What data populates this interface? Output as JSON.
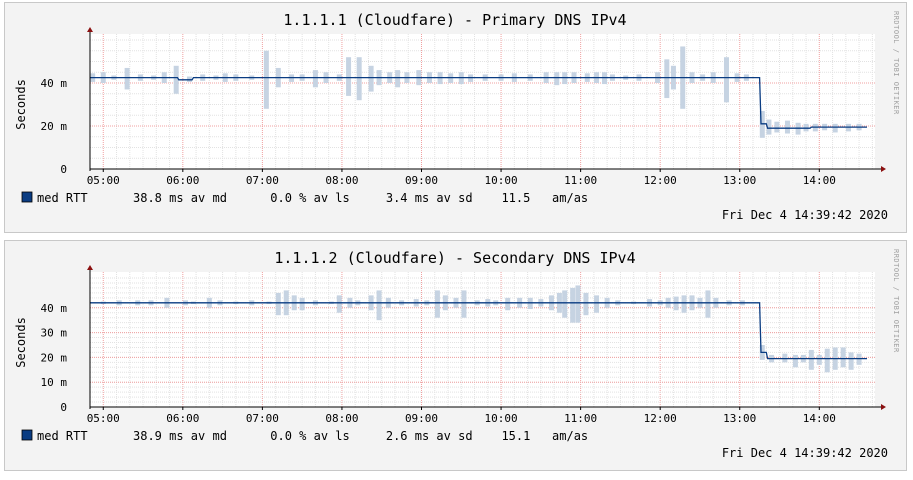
{
  "side_label": "RRDTOOL / TOBI OETIKER",
  "chart_data": [
    {
      "type": "line",
      "title": "1.1.1.1 (Cloudfare) - Primary DNS IPv4",
      "ylabel": "Seconds",
      "x_ticks": [
        "05:00",
        "06:00",
        "07:00",
        "08:00",
        "09:00",
        "10:00",
        "11:00",
        "12:00",
        "13:00",
        "14:00"
      ],
      "x_range": [
        "04:50",
        "14:42"
      ],
      "y_ticks": [
        {
          "value": 0,
          "label": "0"
        },
        {
          "value": 20,
          "label": "20 m"
        },
        {
          "value": 40,
          "label": "40 m"
        }
      ],
      "ylim": [
        0,
        60
      ],
      "grid": true,
      "series": [
        {
          "name": "med RTT",
          "color": "#0a3c82",
          "points": [
            [
              "04:50",
              42.5
            ],
            [
              "05:56",
              42.5
            ],
            [
              "05:57",
              41.5
            ],
            [
              "06:07",
              41.5
            ],
            [
              "06:08",
              42.5
            ],
            [
              "13:15",
              42.5
            ],
            [
              "13:16",
              21
            ],
            [
              "13:20",
              21
            ],
            [
              "13:21",
              19
            ],
            [
              "13:53",
              19
            ],
            [
              "13:54",
              19.5
            ],
            [
              "14:36",
              19.5
            ]
          ]
        }
      ],
      "smoke_color": "#c6d3e2",
      "smoke": [
        [
          "04:52",
          40.5,
          44.5
        ],
        [
          "05:00",
          40,
          45
        ],
        [
          "05:08",
          41.5,
          43.5
        ],
        [
          "05:18",
          37,
          47
        ],
        [
          "05:28",
          41,
          44
        ],
        [
          "05:38",
          41.5,
          43.5
        ],
        [
          "05:46",
          40,
          45
        ],
        [
          "05:55",
          35,
          48
        ],
        [
          "06:05",
          40.5,
          43
        ],
        [
          "06:15",
          41,
          44
        ],
        [
          "06:25",
          41.5,
          43.5
        ],
        [
          "06:32",
          40.5,
          44.5
        ],
        [
          "06:40",
          41,
          44
        ],
        [
          "06:52",
          41.5,
          43.5
        ],
        [
          "07:03",
          28,
          55
        ],
        [
          "07:12",
          38,
          47
        ],
        [
          "07:22",
          40.5,
          44
        ],
        [
          "07:30",
          41,
          44
        ],
        [
          "07:40",
          38,
          46
        ],
        [
          "07:48",
          40,
          45
        ],
        [
          "07:58",
          41,
          44
        ],
        [
          "08:05",
          34,
          52
        ],
        [
          "08:13",
          32,
          52
        ],
        [
          "08:22",
          36,
          48
        ],
        [
          "08:28",
          39,
          46
        ],
        [
          "08:36",
          40,
          45
        ],
        [
          "08:42",
          38,
          46
        ],
        [
          "08:49",
          40,
          45
        ],
        [
          "08:58",
          39,
          46
        ],
        [
          "09:06",
          40,
          45
        ],
        [
          "09:14",
          39.5,
          45
        ],
        [
          "09:22",
          40,
          44.5
        ],
        [
          "09:30",
          39.5,
          45
        ],
        [
          "09:37",
          40.5,
          44
        ],
        [
          "09:48",
          41,
          44
        ],
        [
          "10:00",
          41,
          44
        ],
        [
          "10:10",
          40.5,
          44.5
        ],
        [
          "10:22",
          41,
          44
        ],
        [
          "10:34",
          40,
          45
        ],
        [
          "10:42",
          39,
          45
        ],
        [
          "10:48",
          39.5,
          45
        ],
        [
          "10:55",
          40,
          45
        ],
        [
          "11:05",
          40.5,
          44.5
        ],
        [
          "11:12",
          40,
          45
        ],
        [
          "11:18",
          39.5,
          45
        ],
        [
          "11:24",
          41,
          44
        ],
        [
          "11:34",
          41.5,
          43.5
        ],
        [
          "11:44",
          41,
          44
        ],
        [
          "11:58",
          40,
          45
        ],
        [
          "12:05",
          33,
          51
        ],
        [
          "12:10",
          37,
          48
        ],
        [
          "12:17",
          28,
          57
        ],
        [
          "12:24",
          40,
          45
        ],
        [
          "12:32",
          41,
          44
        ],
        [
          "12:40",
          40,
          45
        ],
        [
          "12:50",
          31,
          52
        ],
        [
          "12:58",
          40.5,
          44.5
        ],
        [
          "13:05",
          41,
          44
        ],
        [
          "13:17",
          14.5,
          27
        ],
        [
          "13:22",
          16,
          23
        ],
        [
          "13:28",
          17,
          22
        ],
        [
          "13:36",
          16.5,
          22.5
        ],
        [
          "13:44",
          16,
          21.5
        ],
        [
          "13:50",
          17.5,
          21
        ],
        [
          "13:57",
          17.5,
          21
        ],
        [
          "14:04",
          18,
          21
        ],
        [
          "14:12",
          17,
          21
        ],
        [
          "14:22",
          17.5,
          21
        ],
        [
          "14:30",
          18,
          21
        ]
      ],
      "legend": {
        "label": "med RTT",
        "color": "#0a3c82",
        "text": "38.8 ms av md      0.0 % av ls     3.4 ms av sd    11.5   am/as"
      },
      "timestamp": "Fri Dec  4 14:39:42 2020"
    },
    {
      "type": "line",
      "title": "1.1.1.2 (Cloudfare) - Secondary DNS IPv4",
      "ylabel": "Seconds",
      "x_ticks": [
        "05:00",
        "06:00",
        "07:00",
        "08:00",
        "09:00",
        "10:00",
        "11:00",
        "12:00",
        "13:00",
        "14:00"
      ],
      "x_range": [
        "04:50",
        "14:42"
      ],
      "y_ticks": [
        {
          "value": 0,
          "label": "0"
        },
        {
          "value": 10,
          "label": "10 m"
        },
        {
          "value": 20,
          "label": "20 m"
        },
        {
          "value": 30,
          "label": "30 m"
        },
        {
          "value": 40,
          "label": "40 m"
        }
      ],
      "ylim": [
        0,
        52
      ],
      "grid": true,
      "series": [
        {
          "name": "med RTT",
          "color": "#0a3c82",
          "points": [
            [
              "04:50",
              42
            ],
            [
              "13:15",
              42
            ],
            [
              "13:16",
              22
            ],
            [
              "13:20",
              22
            ],
            [
              "13:21",
              19.5
            ],
            [
              "14:36",
              19.5
            ]
          ]
        }
      ],
      "smoke_color": "#c6d3e2",
      "smoke": [
        [
          "05:00",
          41.5,
          42.5
        ],
        [
          "05:12",
          41,
          43
        ],
        [
          "05:26",
          41,
          43
        ],
        [
          "05:36",
          41,
          43
        ],
        [
          "05:48",
          40,
          44
        ],
        [
          "06:02",
          41,
          43
        ],
        [
          "06:08",
          41.5,
          42.5
        ],
        [
          "06:20",
          40,
          44
        ],
        [
          "06:28",
          41,
          43
        ],
        [
          "06:40",
          41.5,
          42.5
        ],
        [
          "06:52",
          41,
          43
        ],
        [
          "07:05",
          41.5,
          42.5
        ],
        [
          "07:12",
          37,
          46
        ],
        [
          "07:18",
          37,
          47
        ],
        [
          "07:24",
          39,
          45
        ],
        [
          "07:30",
          39,
          44
        ],
        [
          "07:40",
          41,
          43
        ],
        [
          "07:52",
          41.5,
          42.5
        ],
        [
          "07:58",
          38,
          45
        ],
        [
          "08:06",
          40,
          44
        ],
        [
          "08:12",
          41,
          43
        ],
        [
          "08:22",
          39,
          45
        ],
        [
          "08:28",
          35,
          47
        ],
        [
          "08:35",
          40,
          44
        ],
        [
          "08:45",
          41,
          43
        ],
        [
          "08:56",
          40.5,
          43.5
        ],
        [
          "09:04",
          41,
          43
        ],
        [
          "09:12",
          36,
          47
        ],
        [
          "09:18",
          39,
          45
        ],
        [
          "09:26",
          40,
          44
        ],
        [
          "09:32",
          36,
          47
        ],
        [
          "09:42",
          41,
          43
        ],
        [
          "09:50",
          40.5,
          43.5
        ],
        [
          "09:56",
          41,
          43
        ],
        [
          "10:05",
          39,
          44
        ],
        [
          "10:14",
          40,
          44
        ],
        [
          "10:22",
          39.5,
          44
        ],
        [
          "10:30",
          40.5,
          43.5
        ],
        [
          "10:38",
          39,
          45
        ],
        [
          "10:44",
          38,
          46
        ],
        [
          "10:48",
          36,
          47
        ],
        [
          "10:54",
          34,
          48
        ],
        [
          "10:58",
          34,
          49
        ],
        [
          "11:04",
          37,
          46
        ],
        [
          "11:12",
          38,
          45
        ],
        [
          "11:20",
          40,
          44
        ],
        [
          "11:28",
          41,
          43
        ],
        [
          "11:40",
          41.5,
          42.5
        ],
        [
          "11:52",
          40.5,
          43.5
        ],
        [
          "12:00",
          41,
          43
        ],
        [
          "12:06",
          40,
          44
        ],
        [
          "12:12",
          39,
          44.5
        ],
        [
          "12:18",
          38,
          45
        ],
        [
          "12:24",
          39,
          45
        ],
        [
          "12:30",
          40,
          44
        ],
        [
          "12:36",
          36,
          47
        ],
        [
          "12:42",
          40,
          44
        ],
        [
          "12:52",
          41,
          43
        ],
        [
          "13:02",
          41,
          43
        ],
        [
          "13:17",
          19,
          25
        ],
        [
          "13:24",
          18,
          21
        ],
        [
          "13:34",
          18,
          21.5
        ],
        [
          "13:42",
          16,
          21
        ],
        [
          "13:48",
          18,
          21
        ],
        [
          "13:54",
          15,
          23
        ],
        [
          "14:00",
          17,
          21
        ],
        [
          "14:06",
          14,
          23.5
        ],
        [
          "14:12",
          15,
          24
        ],
        [
          "14:18",
          16,
          24
        ],
        [
          "14:24",
          15,
          22
        ],
        [
          "14:30",
          17,
          21.5
        ]
      ],
      "legend": {
        "label": "med RTT",
        "color": "#0a3c82",
        "text": "38.9 ms av md      0.0 % av ls     2.6 ms av sd    15.1   am/as"
      },
      "timestamp": "Fri Dec  4 14:39:42 2020"
    }
  ]
}
